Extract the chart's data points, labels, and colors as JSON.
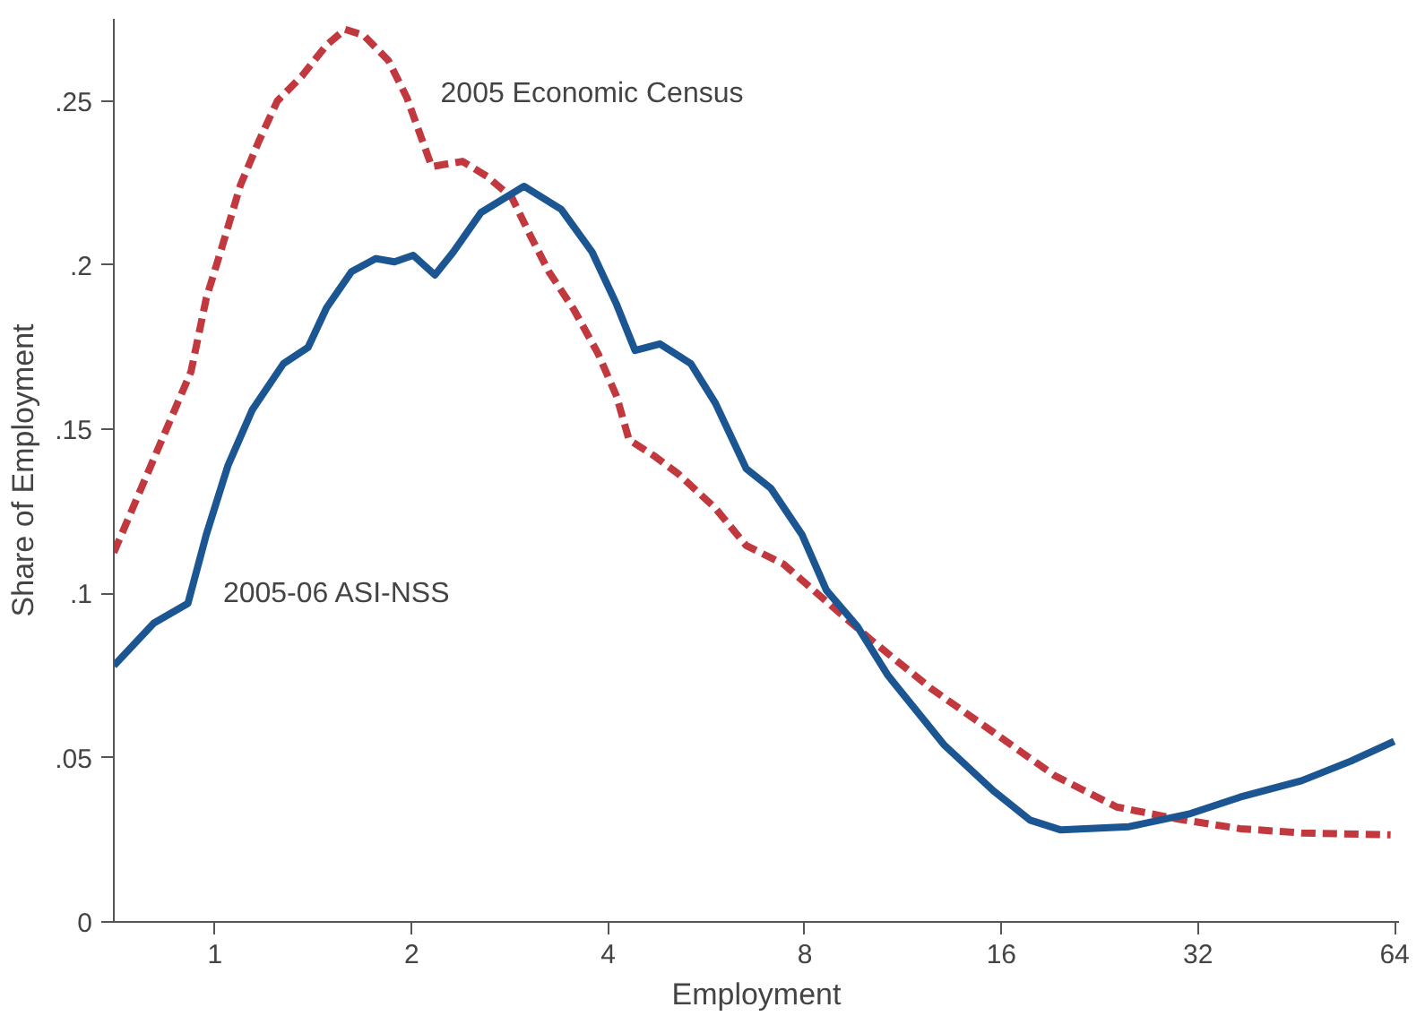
{
  "chart_data": {
    "type": "line",
    "xlabel": "Employment",
    "ylabel": "Share of Employment",
    "log": "x",
    "grid": false,
    "xlim": [
      0.7,
      65
    ],
    "ylim": [
      0,
      0.275
    ],
    "xticks": [
      1,
      2,
      4,
      8,
      16,
      32,
      64
    ],
    "yticks": [
      0,
      {
        "value": 0.05,
        "label": ".05"
      },
      {
        "value": 0.1,
        "label": ".1"
      },
      {
        "value": 0.15,
        "label": ".15"
      },
      {
        "value": 0.2,
        "label": ".2"
      },
      {
        "value": 0.25,
        "label": ".25"
      }
    ],
    "series": [
      {
        "name": "2005 Economic Census",
        "color": "#c1383e",
        "line_style": "dashed",
        "x": [
          0.7,
          0.919,
          0.97,
          1.025,
          1.094,
          1.167,
          1.246,
          1.359,
          1.482,
          1.582,
          1.689,
          1.843,
          1.967,
          2.147,
          2.393,
          2.61,
          2.848,
          3.04,
          3.245,
          3.541,
          3.861,
          4.121,
          4.305,
          4.698,
          5.123,
          5.836,
          6.507,
          7.418,
          8.634,
          10.06,
          12.5,
          15.54,
          19.32,
          24.02,
          29.86,
          37.12,
          46.11,
          63.1
        ],
        "values": [
          0.1125,
          0.1676,
          0.19,
          0.2055,
          0.2244,
          0.2377,
          0.25,
          0.2576,
          0.267,
          0.2718,
          0.27,
          0.2623,
          0.251,
          0.23,
          0.2316,
          0.227,
          0.2206,
          0.209,
          0.198,
          0.1866,
          0.173,
          0.16,
          0.1468,
          0.142,
          0.1364,
          0.126,
          0.1146,
          0.109,
          0.0976,
          0.0862,
          0.071,
          0.0578,
          0.0445,
          0.035,
          0.0313,
          0.0284,
          0.0271,
          0.0265
        ]
      },
      {
        "name": "2005-06 ASI-NSS",
        "color": "#1b5592",
        "line_style": "solid",
        "x": [
          0.7,
          0.806,
          0.909,
          0.97,
          1.047,
          1.141,
          1.273,
          1.389,
          1.482,
          1.618,
          1.764,
          1.883,
          2.011,
          2.171,
          2.317,
          2.554,
          2.973,
          3.389,
          3.779,
          4.121,
          4.398,
          4.8,
          5.352,
          5.836,
          6.507,
          7.101,
          7.917,
          8.634,
          9.627,
          10.73,
          13.06,
          15.54,
          17.7,
          19.74,
          25.09,
          31.17,
          37.12,
          46.11,
          54.91,
          63.9
        ],
        "values": [
          0.078,
          0.091,
          0.097,
          0.118,
          0.139,
          0.156,
          0.17,
          0.175,
          0.187,
          0.198,
          0.202,
          0.201,
          0.203,
          0.197,
          0.204,
          0.216,
          0.224,
          0.217,
          0.204,
          0.188,
          0.174,
          0.176,
          0.17,
          0.158,
          0.138,
          0.132,
          0.118,
          0.101,
          0.09,
          0.075,
          0.054,
          0.04,
          0.031,
          0.028,
          0.029,
          0.033,
          0.038,
          0.043,
          0.049,
          0.055
        ]
      }
    ]
  }
}
